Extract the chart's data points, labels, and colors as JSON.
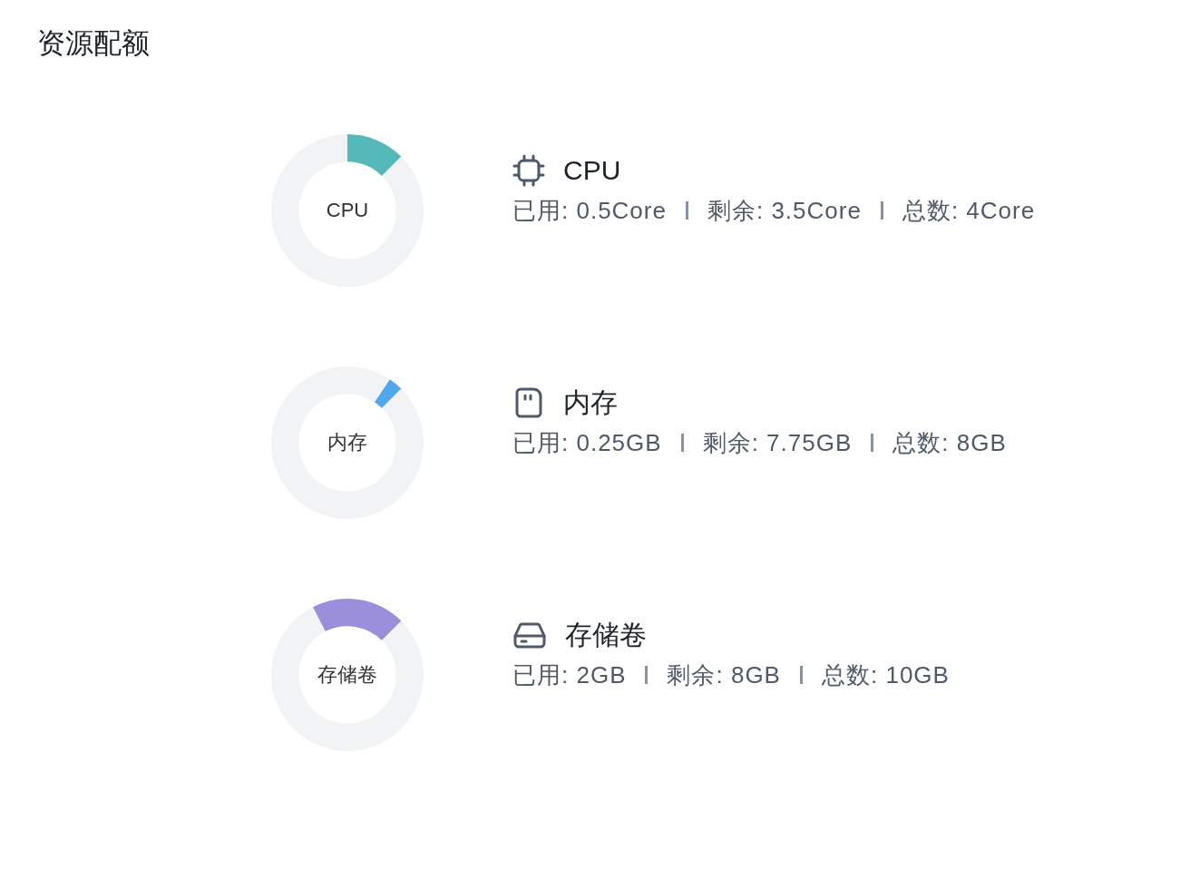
{
  "chart_data": [
    {
      "type": "other",
      "title": "资源配额"
    },
    {
      "type": "donut",
      "title": "CPU",
      "categories": [
        null,
        null
      ],
      "values": [
        12.5,
        87.5
      ],
      "colors": [
        "#55b8b9",
        "#f2f3f5"
      ],
      "annotations": [
        "CPU",
        "已用: 0.5Core",
        "剩余: 3.5Core",
        "总数: 4Core"
      ]
    },
    {
      "type": "donut",
      "title": "内存",
      "categories": [
        null,
        null
      ],
      "values": [
        3.125,
        96.875
      ],
      "colors": [
        "#4fa8ec",
        "#f2f3f5"
      ],
      "annotations": [
        "内存",
        "已用: 0.25GB",
        "剩余: 7.75GB",
        "总数: 8GB"
      ]
    },
    {
      "type": "donut",
      "title": "存储卷",
      "categories": [
        null,
        null
      ],
      "values": [
        20,
        80
      ],
      "colors": [
        "#9b8fdb",
        "#f2f3f5"
      ],
      "annotations": [
        "存储卷",
        "已用: 2GB",
        "剩余: 8GB",
        "总数: 10GB"
      ]
    }
  ]
}
